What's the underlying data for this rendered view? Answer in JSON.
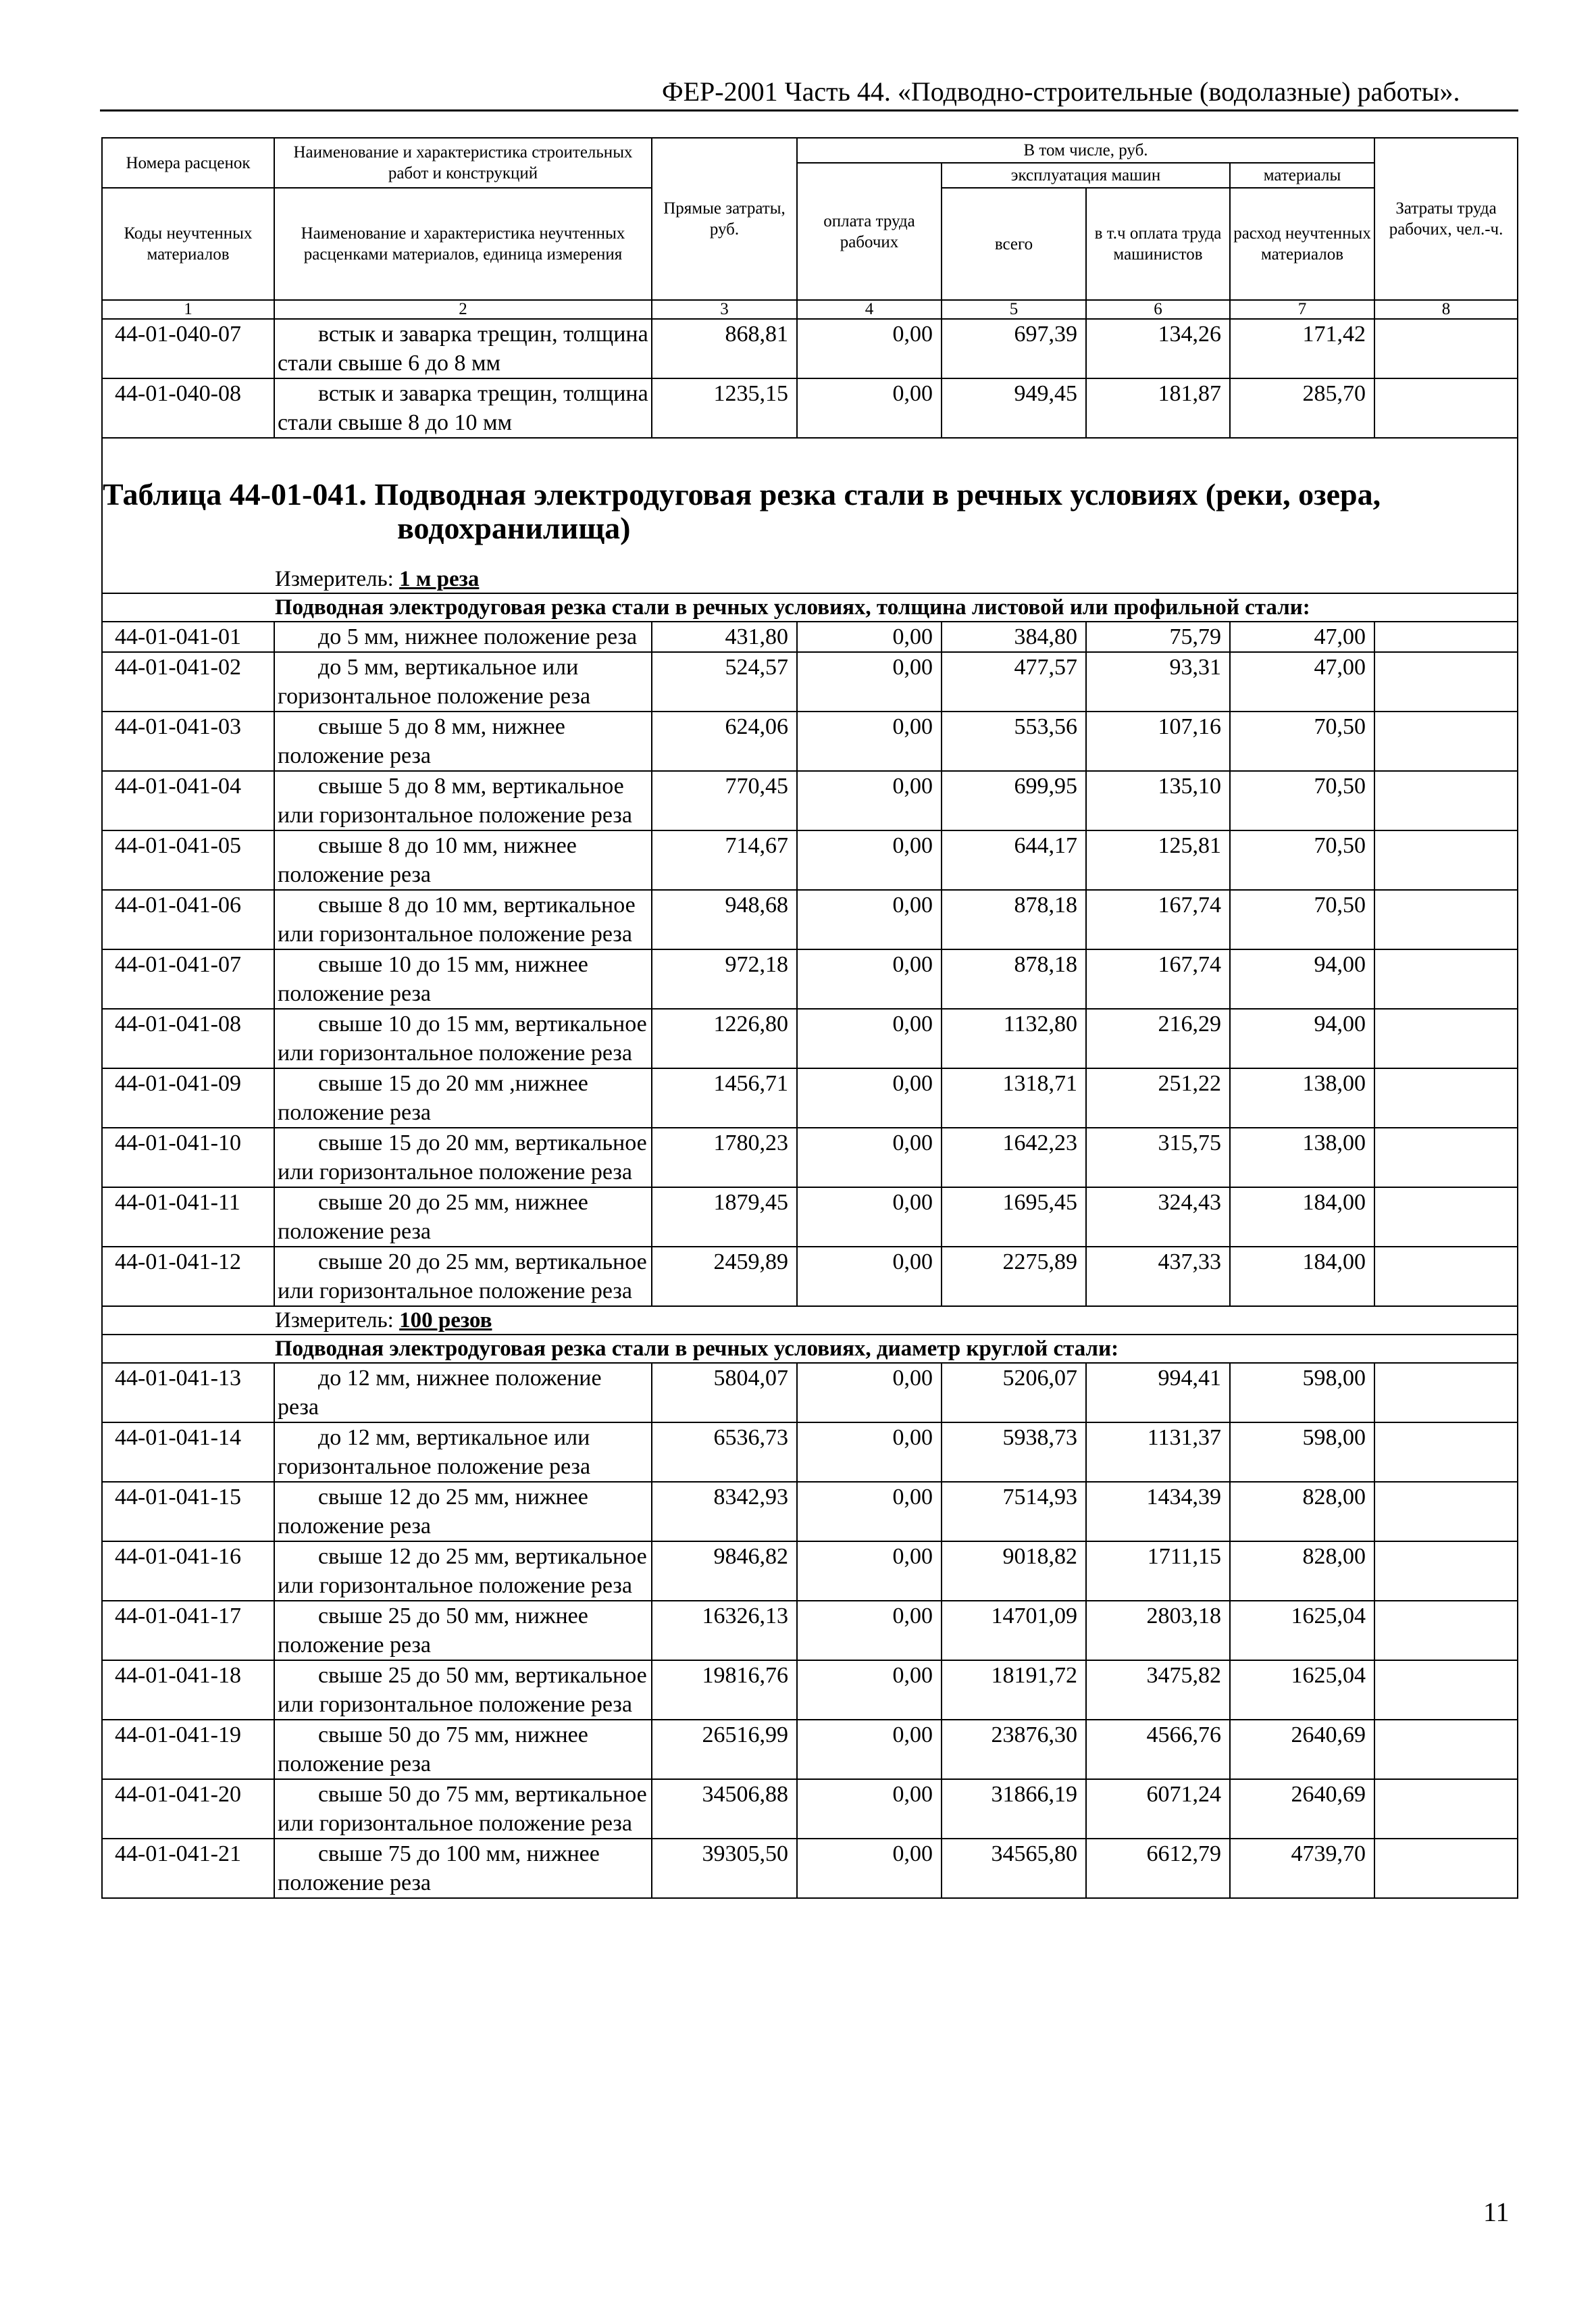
{
  "running_head": "ФЕР-2001 Часть 44. «Подводно-строительные (водолазные) работы».",
  "header": {
    "col1_top": "Номера расценок",
    "col1_bottom": "Коды неучтенных материалов",
    "col2_top": "Наименование и характеристика строительных работ и конструкций",
    "col2_bottom": "Наименование и характеристика неучтенных расценками материалов, единица измерения",
    "col3": "Прямые затраты, руб.",
    "incl": "В том числе, руб.",
    "col4": "оплата труда рабочих",
    "machines": "эксплуатация машин",
    "col5": "всего",
    "col6": "в т.ч оплата труда машинистов",
    "materials": "материалы",
    "col7": "расход неучтенных материалов",
    "col8": "Затраты труда рабочих, чел.-ч.",
    "numbers": [
      "1",
      "2",
      "3",
      "4",
      "5",
      "6",
      "7",
      "8"
    ]
  },
  "rows_before": [
    {
      "code": "44-01-040-07",
      "desc": "встык и заварка трещин, толщина стали свыше 6 до 8 мм",
      "vals": [
        "868,81",
        "0,00",
        "697,39",
        "134,26",
        "171,42",
        ""
      ]
    },
    {
      "code": "44-01-040-08",
      "desc": "встык и заварка трещин, толщина стали свыше 8 до 10 мм",
      "vals": [
        "1235,15",
        "0,00",
        "949,45",
        "181,87",
        "285,70",
        ""
      ]
    }
  ],
  "table_title_line1": "Таблица 44-01-041. Подводная электродуговая резка стали в речных условиях (реки, озера,",
  "table_title_line2": "водохранилища)",
  "sections": [
    {
      "measure_label": "Измеритель: ",
      "measure_unit": "1 м реза",
      "group": "Подводная электродуговая резка стали в речных условиях, толщина листовой или профильной стали:",
      "rows": [
        {
          "code": "44-01-041-01",
          "desc": "до 5 мм, нижнее положение реза",
          "vals": [
            "431,80",
            "0,00",
            "384,80",
            "75,79",
            "47,00",
            ""
          ]
        },
        {
          "code": "44-01-041-02",
          "desc": "до 5 мм, вертикальное или горизонтальное положение реза",
          "vals": [
            "524,57",
            "0,00",
            "477,57",
            "93,31",
            "47,00",
            ""
          ]
        },
        {
          "code": "44-01-041-03",
          "desc": "свыше 5 до 8 мм, нижнее положение реза",
          "vals": [
            "624,06",
            "0,00",
            "553,56",
            "107,16",
            "70,50",
            ""
          ]
        },
        {
          "code": "44-01-041-04",
          "desc": "свыше 5 до 8 мм, вертикальное или горизонтальное положение реза",
          "vals": [
            "770,45",
            "0,00",
            "699,95",
            "135,10",
            "70,50",
            ""
          ]
        },
        {
          "code": "44-01-041-05",
          "desc": "свыше 8 до 10 мм, нижнее положение реза",
          "vals": [
            "714,67",
            "0,00",
            "644,17",
            "125,81",
            "70,50",
            ""
          ]
        },
        {
          "code": "44-01-041-06",
          "desc": "свыше 8 до 10 мм, вертикальное или горизонтальное положение реза",
          "vals": [
            "948,68",
            "0,00",
            "878,18",
            "167,74",
            "70,50",
            ""
          ]
        },
        {
          "code": "44-01-041-07",
          "desc": "свыше 10 до 15 мм, нижнее положение реза",
          "vals": [
            "972,18",
            "0,00",
            "878,18",
            "167,74",
            "94,00",
            ""
          ]
        },
        {
          "code": "44-01-041-08",
          "desc": "свыше 10 до 15 мм, вертикальное или горизонтальное положение реза",
          "vals": [
            "1226,80",
            "0,00",
            "1132,80",
            "216,29",
            "94,00",
            ""
          ]
        },
        {
          "code": "44-01-041-09",
          "desc": "свыше 15 до 20 мм ,нижнее положение реза",
          "vals": [
            "1456,71",
            "0,00",
            "1318,71",
            "251,22",
            "138,00",
            ""
          ]
        },
        {
          "code": "44-01-041-10",
          "desc": "свыше 15 до 20 мм, вертикальное или горизонтальное положение реза",
          "vals": [
            "1780,23",
            "0,00",
            "1642,23",
            "315,75",
            "138,00",
            ""
          ]
        },
        {
          "code": "44-01-041-11",
          "desc": "свыше 20 до 25 мм, нижнее положение реза",
          "vals": [
            "1879,45",
            "0,00",
            "1695,45",
            "324,43",
            "184,00",
            ""
          ]
        },
        {
          "code": "44-01-041-12",
          "desc": "свыше 20 до 25 мм, вертикальное или горизонтальное положение реза",
          "vals": [
            "2459,89",
            "0,00",
            "2275,89",
            "437,33",
            "184,00",
            ""
          ]
        }
      ]
    },
    {
      "measure_label": "Измеритель: ",
      "measure_unit": "100 резов",
      "group": "Подводная электродуговая резка стали в речных условиях, диаметр круглой стали:",
      "rows": [
        {
          "code": "44-01-041-13",
          "desc": "до 12 мм, нижнее положение реза",
          "vals": [
            "5804,07",
            "0,00",
            "5206,07",
            "994,41",
            "598,00",
            ""
          ]
        },
        {
          "code": "44-01-041-14",
          "desc": "до 12 мм, вертикальное или горизонтальное положение реза",
          "vals": [
            "6536,73",
            "0,00",
            "5938,73",
            "1131,37",
            "598,00",
            ""
          ]
        },
        {
          "code": "44-01-041-15",
          "desc": "свыше 12 до 25 мм, нижнее положение реза",
          "vals": [
            "8342,93",
            "0,00",
            "7514,93",
            "1434,39",
            "828,00",
            ""
          ]
        },
        {
          "code": "44-01-041-16",
          "desc": "свыше 12 до 25 мм, вертикальное или горизонтальное положение реза",
          "vals": [
            "9846,82",
            "0,00",
            "9018,82",
            "1711,15",
            "828,00",
            ""
          ]
        },
        {
          "code": "44-01-041-17",
          "desc": "свыше 25 до 50 мм, нижнее положение реза",
          "vals": [
            "16326,13",
            "0,00",
            "14701,09",
            "2803,18",
            "1625,04",
            ""
          ]
        },
        {
          "code": "44-01-041-18",
          "desc": "свыше 25 до 50 мм, вертикальное или горизонтальное положение реза",
          "vals": [
            "19816,76",
            "0,00",
            "18191,72",
            "3475,82",
            "1625,04",
            ""
          ]
        },
        {
          "code": "44-01-041-19",
          "desc": "свыше 50 до 75 мм, нижнее положение реза",
          "vals": [
            "26516,99",
            "0,00",
            "23876,30",
            "4566,76",
            "2640,69",
            ""
          ]
        },
        {
          "code": "44-01-041-20",
          "desc": "свыше 50 до 75 мм, вертикальное или горизонтальное положение реза",
          "vals": [
            "34506,88",
            "0,00",
            "31866,19",
            "6071,24",
            "2640,69",
            ""
          ]
        },
        {
          "code": "44-01-041-21",
          "desc": "свыше 75 до 100 мм, нижнее положение реза",
          "vals": [
            "39305,50",
            "0,00",
            "34565,80",
            "6612,79",
            "4739,70",
            ""
          ]
        }
      ]
    }
  ],
  "page_number": "11"
}
